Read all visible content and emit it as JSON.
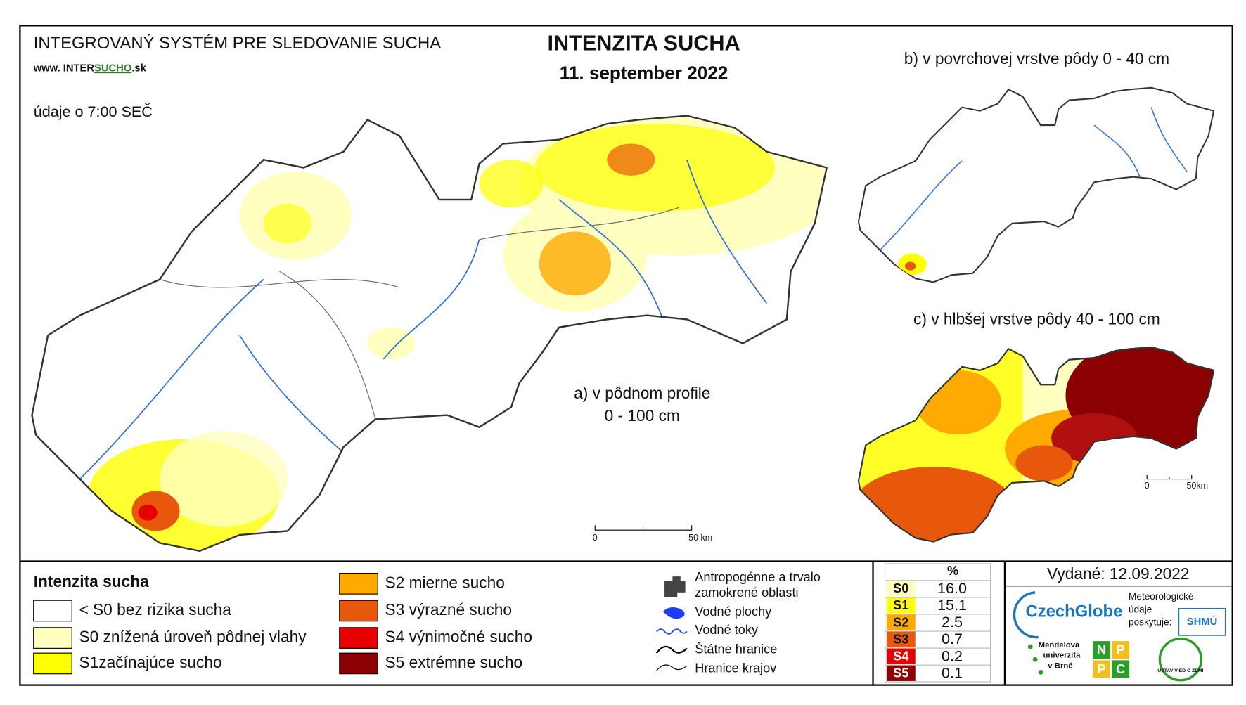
{
  "header": {
    "system_title": "INTEGROVANÝ SYSTÉM PRE SLEDOVANIE SUCHA",
    "website": {
      "prefix": "www. INTER",
      "highlight": "SUCHO",
      "suffix": ".sk"
    },
    "time_note": "údaje o 7:00 SEČ",
    "title": "INTENZITA SUCHA",
    "date": "11. september 2022"
  },
  "maps": {
    "main": {
      "label": [
        "a) v pôdnom profile",
        "0 - 100 cm"
      ],
      "scale": [
        "0",
        "50 km"
      ]
    },
    "surface": {
      "label": "b) v povrchovej vrstve pôdy 0 - 40 cm"
    },
    "deep": {
      "label": "c) v hlbšej vrstve pôdy 40 - 100 cm",
      "scale": [
        "0",
        "50km"
      ]
    }
  },
  "legend": {
    "title": "Intenzita sucha",
    "items": [
      {
        "label": "< S0 bez rizika sucha",
        "color": "#ffffff"
      },
      {
        "label": "S0 znížená úroveň pôdnej vlahy",
        "color": "#ffffc0"
      },
      {
        "label": "S1začínajúce sucho",
        "color": "#ffff00"
      },
      {
        "label": "S2 mierne sucho",
        "color": "#ffaa00"
      },
      {
        "label": "S3 výrazné sucho",
        "color": "#e8580c"
      },
      {
        "label": "S4 výnimočné sucho",
        "color": "#e60000"
      },
      {
        "label": "S5 extrémne sucho",
        "color": "#8b0000"
      }
    ]
  },
  "symbols": [
    {
      "label": [
        "Antropogénne a trvalo",
        "zamokrené oblasti"
      ]
    },
    {
      "label": [
        "Vodné plochy"
      ]
    },
    {
      "label": [
        "Vodné toky"
      ]
    },
    {
      "label": [
        "Štátne hranice"
      ]
    },
    {
      "label": [
        "Hranice krajov"
      ]
    }
  ],
  "table": {
    "header": "%",
    "rows": [
      {
        "code": "S0",
        "value": "16.0",
        "color": "#ffffc0"
      },
      {
        "code": "S1",
        "value": "15.1",
        "color": "#ffff00"
      },
      {
        "code": "S2",
        "value": "2.5",
        "color": "#ffaa00"
      },
      {
        "code": "S3",
        "value": "0.7",
        "color": "#e8580c"
      },
      {
        "code": "S4",
        "value": "0.2",
        "color": "#e60000"
      },
      {
        "code": "S5",
        "value": "0.1",
        "color": "#8b0000"
      }
    ]
  },
  "footer": {
    "issued": "Vydané: 12.09.2022",
    "czechglobe": "CzechGlobe",
    "shmu_note": [
      "Meteorologické",
      "údaje",
      "poskytuje:"
    ],
    "shmu": "SHMÚ",
    "mendel": [
      "Mendelova",
      "univerzita",
      "v Brně"
    ],
    "nppc": [
      "N",
      "P",
      "P",
      "C"
    ],
    "uvz": "ÚSTAV VIED O ZEMI"
  }
}
